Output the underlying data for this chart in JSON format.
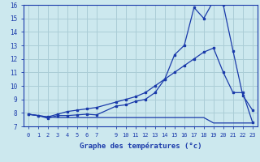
{
  "xlabel": "Graphe des températures (°c)",
  "bg_color": "#cce8ee",
  "grid_color": "#aacdd6",
  "line_color": "#1a3aaa",
  "xlim": [
    -0.5,
    23.5
  ],
  "ylim": [
    7,
    16
  ],
  "yticks": [
    7,
    8,
    9,
    10,
    11,
    12,
    13,
    14,
    15,
    16
  ],
  "xticks": [
    0,
    1,
    2,
    3,
    4,
    5,
    6,
    7,
    9,
    10,
    11,
    12,
    13,
    14,
    15,
    16,
    17,
    18,
    19,
    20,
    21,
    22,
    23
  ],
  "line1_x": [
    0,
    1,
    2,
    3,
    4,
    5,
    6,
    7,
    9,
    10,
    11,
    12,
    13,
    14,
    15,
    16,
    17,
    18,
    19,
    20,
    21,
    22,
    23
  ],
  "line1_y": [
    7.9,
    7.8,
    7.6,
    7.8,
    7.8,
    7.85,
    7.9,
    7.85,
    8.5,
    8.6,
    8.85,
    9.0,
    9.5,
    10.5,
    12.3,
    13.0,
    15.8,
    15.0,
    16.3,
    16.0,
    12.6,
    9.3,
    8.2
  ],
  "line2_x": [
    0,
    1,
    2,
    3,
    4,
    5,
    6,
    7,
    9,
    10,
    11,
    12,
    13,
    14,
    15,
    16,
    17,
    18,
    19,
    20,
    21,
    22,
    23
  ],
  "line2_y": [
    7.9,
    7.8,
    7.7,
    7.9,
    8.1,
    8.2,
    8.3,
    8.4,
    8.8,
    9.0,
    9.2,
    9.5,
    10.0,
    10.5,
    11.0,
    11.5,
    12.0,
    12.5,
    12.8,
    11.0,
    9.5,
    9.5,
    7.3
  ],
  "line3_x": [
    0,
    1,
    2,
    3,
    4,
    5,
    6,
    7,
    9,
    10,
    11,
    12,
    13,
    14,
    15,
    16,
    17,
    18,
    19,
    20,
    21,
    22,
    23
  ],
  "line3_y": [
    7.9,
    7.8,
    7.7,
    7.65,
    7.65,
    7.65,
    7.65,
    7.65,
    7.65,
    7.65,
    7.65,
    7.65,
    7.65,
    7.65,
    7.65,
    7.65,
    7.65,
    7.65,
    7.25,
    7.25,
    7.25,
    7.25,
    7.25
  ],
  "xlabel_fontsize": 6.5,
  "tick_fontsize": 5.0,
  "ytick_fontsize": 5.5
}
